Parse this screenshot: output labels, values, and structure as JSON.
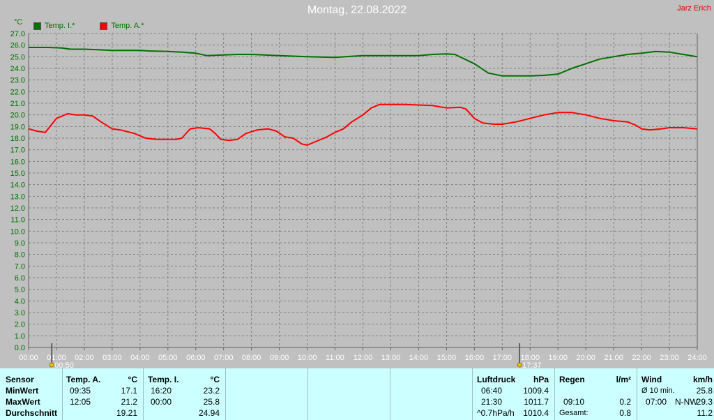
{
  "header": {
    "title": "Montag, 22.08.2022",
    "brand": "Jarz Erich"
  },
  "legend": {
    "unit": "°C",
    "items": [
      {
        "label": "Temp. I.*",
        "color": "#007000"
      },
      {
        "label": "Temp. A.*",
        "color": "#ff0000"
      }
    ]
  },
  "chart_data": {
    "type": "line",
    "title": "Montag, 22.08.2022",
    "ylabel": "°C",
    "xlabel": "",
    "xlim": [
      0,
      24
    ],
    "ylim": [
      0,
      27
    ],
    "grid": true,
    "legend_position": "top-left",
    "x_ticks": [
      "00:00",
      "01:00",
      "02:00",
      "03:00",
      "04:00",
      "05:00",
      "06:00",
      "07:00",
      "08:00",
      "09:00",
      "10:00",
      "11:00",
      "12:00",
      "13:00",
      "14:00",
      "15:00",
      "16:00",
      "17:00",
      "18:00",
      "19:00",
      "20:00",
      "21:00",
      "22:00",
      "23:00",
      "24:00"
    ],
    "y_ticks": [
      "0.0",
      "1.0",
      "2.0",
      "3.0",
      "4.0",
      "5.0",
      "6.0",
      "7.0",
      "8.0",
      "9.0",
      "10.0",
      "11.0",
      "12.0",
      "13.0",
      "14.0",
      "15.0",
      "16.0",
      "17.0",
      "18.0",
      "19.0",
      "20.0",
      "21.0",
      "22.0",
      "23.0",
      "24.0",
      "25.0",
      "26.0",
      "27.0"
    ],
    "sun_markers": [
      {
        "x": 0.83,
        "label": "00:50"
      },
      {
        "x": 17.62,
        "label": "17:37"
      }
    ],
    "series": [
      {
        "name": "Temp. I.*",
        "color": "#007000",
        "points": [
          [
            0,
            25.8
          ],
          [
            0.7,
            25.8
          ],
          [
            1.2,
            25.75
          ],
          [
            1.5,
            25.65
          ],
          [
            2,
            25.65
          ],
          [
            2.5,
            25.6
          ],
          [
            3,
            25.55
          ],
          [
            4,
            25.55
          ],
          [
            4.3,
            25.5
          ],
          [
            5,
            25.45
          ],
          [
            5.5,
            25.4
          ],
          [
            6,
            25.3
          ],
          [
            6.4,
            25.1
          ],
          [
            7,
            25.15
          ],
          [
            7.5,
            25.2
          ],
          [
            8,
            25.2
          ],
          [
            9,
            25.1
          ],
          [
            10,
            25.0
          ],
          [
            11,
            24.95
          ],
          [
            12,
            25.1
          ],
          [
            13,
            25.1
          ],
          [
            14,
            25.1
          ],
          [
            14.5,
            25.2
          ],
          [
            15,
            25.25
          ],
          [
            15.3,
            25.2
          ],
          [
            16,
            24.4
          ],
          [
            16.5,
            23.6
          ],
          [
            17,
            23.35
          ],
          [
            17.5,
            23.35
          ],
          [
            18,
            23.35
          ],
          [
            18.5,
            23.4
          ],
          [
            19,
            23.5
          ],
          [
            19.5,
            24.0
          ],
          [
            20,
            24.4
          ],
          [
            20.5,
            24.8
          ],
          [
            21,
            25.0
          ],
          [
            21.5,
            25.2
          ],
          [
            22,
            25.3
          ],
          [
            22.5,
            25.45
          ],
          [
            23,
            25.4
          ],
          [
            23.5,
            25.2
          ],
          [
            24,
            25.0
          ]
        ]
      },
      {
        "name": "Temp. A.*",
        "color": "#ff0000",
        "points": [
          [
            0,
            18.8
          ],
          [
            0.3,
            18.6
          ],
          [
            0.6,
            18.5
          ],
          [
            1,
            19.7
          ],
          [
            1.4,
            20.1
          ],
          [
            1.7,
            20.0
          ],
          [
            2,
            20.0
          ],
          [
            2.3,
            19.9
          ],
          [
            2.6,
            19.4
          ],
          [
            3,
            18.8
          ],
          [
            3.3,
            18.7
          ],
          [
            3.8,
            18.4
          ],
          [
            4.2,
            18.0
          ],
          [
            4.6,
            17.9
          ],
          [
            5,
            17.9
          ],
          [
            5.3,
            17.9
          ],
          [
            5.5,
            18.0
          ],
          [
            5.8,
            18.8
          ],
          [
            6.1,
            18.9
          ],
          [
            6.5,
            18.8
          ],
          [
            6.7,
            18.4
          ],
          [
            6.9,
            17.9
          ],
          [
            7.2,
            17.8
          ],
          [
            7.5,
            17.9
          ],
          [
            7.8,
            18.4
          ],
          [
            8.2,
            18.7
          ],
          [
            8.6,
            18.8
          ],
          [
            8.9,
            18.6
          ],
          [
            9.2,
            18.1
          ],
          [
            9.5,
            18.0
          ],
          [
            9.8,
            17.5
          ],
          [
            10,
            17.4
          ],
          [
            10.3,
            17.7
          ],
          [
            10.7,
            18.1
          ],
          [
            11,
            18.5
          ],
          [
            11.3,
            18.8
          ],
          [
            11.6,
            19.4
          ],
          [
            12,
            20.0
          ],
          [
            12.3,
            20.6
          ],
          [
            12.6,
            20.9
          ],
          [
            13,
            20.9
          ],
          [
            13.5,
            20.9
          ],
          [
            14,
            20.85
          ],
          [
            14.5,
            20.8
          ],
          [
            15,
            20.6
          ],
          [
            15.5,
            20.65
          ],
          [
            15.7,
            20.5
          ],
          [
            16,
            19.7
          ],
          [
            16.3,
            19.3
          ],
          [
            16.7,
            19.2
          ],
          [
            17,
            19.2
          ],
          [
            17.5,
            19.4
          ],
          [
            18,
            19.7
          ],
          [
            18.5,
            20.0
          ],
          [
            19,
            20.2
          ],
          [
            19.5,
            20.2
          ],
          [
            20,
            20.0
          ],
          [
            20.5,
            19.7
          ],
          [
            21,
            19.5
          ],
          [
            21.5,
            19.4
          ],
          [
            21.8,
            19.1
          ],
          [
            22,
            18.8
          ],
          [
            22.3,
            18.7
          ],
          [
            22.7,
            18.8
          ],
          [
            23,
            18.9
          ],
          [
            23.5,
            18.9
          ],
          [
            24,
            18.8
          ]
        ]
      }
    ]
  },
  "stats": {
    "sensor": {
      "header": "Sensor",
      "rows": [
        "MinWert",
        "MaxWert",
        "Durchschnitt"
      ]
    },
    "temp_a": {
      "header": "Temp. A.",
      "unit": "°C",
      "min_time": "09:35",
      "min_value": "17.1",
      "max_time": "12:05",
      "max_value": "21.2",
      "avg": "19.21"
    },
    "temp_i": {
      "header": "Temp. I.",
      "unit": "°C",
      "min_time": "16:20",
      "min_value": "23.2",
      "max_time": "00:00",
      "max_value": "25.8",
      "avg": "24.94"
    },
    "luftdruck": {
      "header": "Luftdruck",
      "unit": "hPa",
      "min_time": "06:40",
      "min_value": "1009.4",
      "max_time": "21:30",
      "max_value": "1011.7",
      "trend": "^0.7hPa/h",
      "avg": "1010.4"
    },
    "regen": {
      "header": "Regen",
      "unit": "l/m²",
      "max_time": "09:10",
      "max_value": "0.2",
      "total_label": "Gesamt:",
      "total": "0.8"
    },
    "wind": {
      "header": "Wind",
      "unit": "km/h",
      "avg_label": "Ø 10 min.",
      "avg_value": "25.8",
      "max_time": "07:00",
      "max_dir": "N-NW",
      "max_value": "29.3",
      "mean": "11.2"
    }
  }
}
